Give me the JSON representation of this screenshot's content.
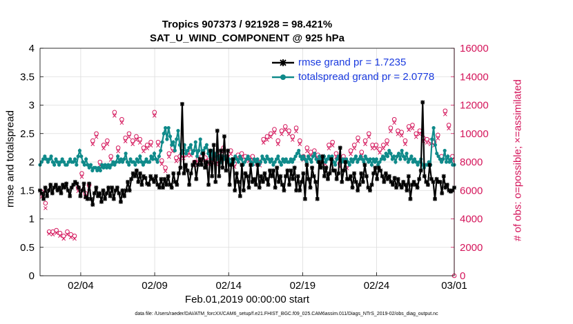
{
  "figure": {
    "title_line1": "Tropics 907373 / 921928 = 98.421%",
    "title_line2": "SAT_U_WIND_COMPONENT @ 925 hPa",
    "xlabel": "Feb.01,2019 00:00:00 start",
    "ylabel_left": "rmse and totalspread",
    "ylabel_right": "# of obs: o=possible; ×=assimilated",
    "footer": "data file: /Users/raeder/DAI/ATM_forcXX/CAM6_setup/f.e21.FHIST_BGC.f09_025.CAM6assim.011/Diags_NTrS_2019-02/obs_diag_output.nc"
  },
  "legend": {
    "rmse_label": "rmse grand pr = 1.7235",
    "spread_label": "totalspread grand pr = 2.0778"
  },
  "colors": {
    "rmse": "#000000",
    "spread": "#0f8a8a",
    "obs": "#d4145a",
    "axis": "#000000"
  },
  "chart_data": {
    "type": "line",
    "x_unit": "days since Feb.01,2019 00:00",
    "xlim": [
      0,
      28
    ],
    "xticks": [
      2.75,
      7.75,
      12.75,
      17.75,
      22.75,
      28
    ],
    "xtick_labels": [
      "02/04",
      "02/09",
      "02/14",
      "02/19",
      "02/24",
      "03/01"
    ],
    "ylim_left": [
      0,
      4
    ],
    "yticks_left": [
      0,
      0.5,
      1,
      1.5,
      2,
      2.5,
      3,
      3.5,
      4
    ],
    "ylim_right": [
      0,
      16000
    ],
    "yticks_right": [
      0,
      2000,
      4000,
      6000,
      8000,
      10000,
      12000,
      14000,
      16000
    ],
    "series": [
      {
        "name": "rmse grand pr = 1.7235",
        "axis": "left",
        "values": [
          1.5,
          1.45,
          1.35,
          1.55,
          1.4,
          1.5,
          1.6,
          1.45,
          1.55,
          1.6,
          1.5,
          1.55,
          1.45,
          1.6,
          1.55,
          1.62,
          1.5,
          1.4,
          1.55,
          1.6,
          1.65,
          1.62,
          1.55,
          1.4,
          1.5,
          1.62,
          1.38,
          1.35,
          1.62,
          1.35,
          1.25,
          1.45,
          1.55,
          1.4,
          1.45,
          1.3,
          1.5,
          1.35,
          1.45,
          1.55,
          1.4,
          1.55,
          1.35,
          1.5,
          1.55,
          1.45,
          1.3,
          1.5,
          1.4,
          1.5,
          1.65,
          1.5,
          1.7,
          1.8,
          1.75,
          1.85,
          1.65,
          1.8,
          1.6,
          1.75,
          1.72,
          1.62,
          1.6,
          1.75,
          1.7,
          1.65,
          1.75,
          1.6,
          1.55,
          1.7,
          1.55,
          1.7,
          1.6,
          1.75,
          1.6,
          1.55,
          1.8,
          1.65,
          1.6,
          1.8,
          1.9,
          3.02,
          1.8,
          1.95,
          1.85,
          1.6,
          1.8,
          1.95,
          2.0,
          1.7,
          1.95,
          2.05,
          1.95,
          2.15,
          1.9,
          2.0,
          1.6,
          2.2,
          1.75,
          2.3,
          1.65,
          2.55,
          1.75,
          2.2,
          1.9,
          2.45,
          1.85,
          2.2,
          1.6,
          1.95,
          2.05,
          1.5,
          1.8,
          1.65,
          1.4,
          1.95,
          1.5,
          1.8,
          1.75,
          1.55,
          1.95,
          1.65,
          1.7,
          1.6,
          1.95,
          1.55,
          1.75,
          1.65,
          1.8,
          1.7,
          1.6,
          1.85,
          1.75,
          1.85,
          1.55,
          1.9,
          1.65,
          1.75,
          1.6,
          1.5,
          1.75,
          1.85,
          1.6,
          1.85,
          1.7,
          1.9,
          1.5,
          1.75,
          1.5,
          1.65,
          1.8,
          1.35,
          1.95,
          1.7,
          1.55,
          1.9,
          1.75,
          1.65,
          1.35,
          2.0,
          1.9,
          2.1,
          1.75,
          1.9,
          1.7,
          1.8,
          2.05,
          1.85,
          1.85,
          1.7,
          1.8,
          2.25,
          1.65,
          1.85,
          2.0,
          1.7,
          1.7,
          1.75,
          1.55,
          1.8,
          1.65,
          1.5,
          1.6,
          1.8,
          1.65,
          1.95,
          1.75,
          1.55,
          1.5,
          1.6,
          1.8,
          1.9,
          1.7,
          1.9,
          1.85,
          1.75,
          1.65,
          1.8,
          1.7,
          1.75,
          1.65,
          1.6,
          1.72,
          1.55,
          1.7,
          1.6,
          1.55,
          1.65,
          1.6,
          1.5,
          1.75,
          1.35,
          1.6,
          1.65,
          1.6,
          1.55,
          1.7,
          1.85,
          3.05,
          1.75,
          1.65,
          1.6,
          1.95,
          1.7,
          1.65,
          1.35,
          1.7,
          1.65,
          1.65,
          1.45,
          1.75,
          1.55,
          1.6,
          1.5,
          1.48,
          1.5,
          1.55
        ]
      },
      {
        "name": "totalspread grand pr = 2.0778",
        "axis": "left",
        "values": [
          1.95,
          2.0,
          2.05,
          2.1,
          2.05,
          2.0,
          2.05,
          2.1,
          2.0,
          1.95,
          2.05,
          2.0,
          1.95,
          2.0,
          2.05,
          2.0,
          1.95,
          1.95,
          2.0,
          2.05,
          2.0,
          2.0,
          2.05,
          1.95,
          2.1,
          2.2,
          2.1,
          2.0,
          1.95,
          2.05,
          1.95,
          1.9,
          1.95,
          1.85,
          1.9,
          1.9,
          1.85,
          1.9,
          1.85,
          1.95,
          1.9,
          1.95,
          1.9,
          1.95,
          1.9,
          1.95,
          2.0,
          1.95,
          2.0,
          2.1,
          2.0,
          2.05,
          2.0,
          2.05,
          2.15,
          2.0,
          1.95,
          2.05,
          2.0,
          2.0,
          1.95,
          2.05,
          2.0,
          2.1,
          2.0,
          1.95,
          2.0,
          2.05,
          2.0,
          2.0,
          2.1,
          2.05,
          2.15,
          2.05,
          2.0,
          2.1,
          2.2,
          2.35,
          2.5,
          2.6,
          2.4,
          2.6,
          2.45,
          2.3,
          2.35,
          2.2,
          2.4,
          2.55,
          2.3,
          2.15,
          2.2,
          2.3,
          2.15,
          2.2,
          2.25,
          2.3,
          2.15,
          2.2,
          2.35,
          2.1,
          2.2,
          2.4,
          2.15,
          2.2,
          2.25,
          2.3,
          2.15,
          2.1,
          2.2,
          2.05,
          2.15,
          2.1,
          2.05,
          2.1,
          2.0,
          2.1,
          2.05,
          2.1,
          2.0,
          2.05,
          1.95,
          2.05,
          2.0,
          2.1,
          2.05,
          2.0,
          2.1,
          2.05,
          1.95,
          2.0,
          2.05,
          2.1,
          2.05,
          2.0,
          1.95,
          2.05,
          2.0,
          2.05,
          1.95,
          2.0,
          2.1,
          2.05,
          2.0,
          2.1,
          2.05,
          2.0,
          2.05,
          1.95,
          2.0,
          2.05,
          2.1,
          2.0,
          1.95,
          2.05,
          2.0,
          2.05,
          2.0,
          2.0,
          2.05,
          2.0,
          2.05,
          2.1,
          2.15,
          2.2,
          2.1,
          2.05,
          2.1,
          2.05,
          2.0,
          2.1,
          2.05,
          2.0,
          2.1,
          2.15,
          2.05,
          2.0,
          2.1,
          2.05,
          2.0,
          2.1,
          2.0,
          2.05,
          2.1,
          2.05,
          2.1,
          2.0,
          1.95,
          2.05,
          2.1,
          2.05,
          2.0,
          2.05,
          2.0,
          2.05,
          2.0,
          1.95,
          2.05,
          2.0,
          2.05,
          2.1,
          2.0,
          2.05,
          2.1,
          2.05,
          2.0,
          2.1,
          2.05,
          2.0,
          2.05,
          1.95,
          2.05,
          2.0,
          2.05,
          1.95,
          2.0,
          2.05,
          2.1,
          2.05,
          2.15,
          2.1,
          2.2,
          2.15,
          2.05,
          2.1,
          2.0,
          2.1,
          2.15,
          2.05,
          2.2,
          2.1,
          2.05,
          2.15,
          2.0,
          2.05,
          2.1,
          2.0,
          2.05,
          2.0,
          1.95,
          2.0,
          2.05,
          1.95,
          1.9,
          1.95,
          1.95,
          2.0,
          1.95,
          2.4,
          2.6,
          2.3,
          2.15,
          2.1,
          2.05,
          2.0,
          2.05,
          2.2,
          2.0,
          2.1,
          2.0,
          2.05,
          1.95,
          1.95
        ]
      },
      {
        "name": "# of obs possible (o)",
        "axis": "right",
        "marker": "o",
        "values": [
          5900,
          5100,
          3100,
          3100,
          3200,
          3000,
          2800,
          3100,
          2900,
          2800,
          6200,
          7200,
          5800,
          6400,
          9500,
          10000,
          8000,
          9200,
          9500,
          8400,
          11500,
          9000,
          11000,
          9700,
          10000,
          9500,
          9800,
          9600,
          9000,
          9200,
          9400,
          11500,
          9400,
          8100,
          7600,
          8600,
          9000,
          8300,
          8400,
          8500,
          8700,
          8700,
          8000,
          8200,
          8400,
          8300,
          8100,
          8200,
          8100,
          8700,
          9000,
          8400,
          8800,
          7900,
          8500,
          8600,
          8400,
          8300,
          8400,
          8100,
          8000,
          9600,
          9800,
          10000,
          10300,
          9500,
          10200,
          10500,
          10200,
          9800,
          10400,
          9500,
          8400,
          9000,
          8700,
          8800,
          8500,
          8300,
          8100,
          9200,
          9400,
          8600,
          7900,
          8400,
          7800,
          8800,
          9200,
          9700,
          8700,
          9500,
          10000,
          9200,
          9200,
          8900,
          9200,
          9500,
          10400,
          11000,
          10200,
          10100,
          9500,
          10500,
          10600,
          10000,
          10200,
          9700,
          9600,
          9500,
          9400,
          9900,
          8400,
          11600,
          10600,
          8400
        ]
      },
      {
        "name": "# of obs assimilated (×)",
        "axis": "right",
        "marker": "x",
        "values": [
          5700,
          4900,
          3100,
          3050,
          3150,
          2950,
          2750,
          3050,
          2850,
          2750,
          6100,
          7100,
          5700,
          6300,
          9400,
          9900,
          7900,
          9100,
          9400,
          8300,
          11400,
          8900,
          10900,
          9600,
          9900,
          9400,
          9700,
          9500,
          8900,
          9100,
          9300,
          11400,
          9300,
          8000,
          7500,
          8500,
          8900,
          8200,
          8300,
          8400,
          8600,
          8600,
          7900,
          8100,
          8300,
          8200,
          8000,
          8100,
          8000,
          8600,
          8900,
          8300,
          8700,
          7800,
          8400,
          8500,
          8300,
          8200,
          8300,
          8000,
          7900,
          9500,
          9700,
          9900,
          10200,
          9400,
          10100,
          10400,
          10100,
          9700,
          10300,
          9400,
          8300,
          8900,
          8600,
          8700,
          8400,
          8200,
          8000,
          9100,
          9300,
          8500,
          7800,
          8300,
          7700,
          8700,
          9100,
          9600,
          8600,
          9400,
          9900,
          9100,
          9100,
          8800,
          9100,
          9400,
          10300,
          10900,
          10100,
          10000,
          9400,
          10400,
          10500,
          9900,
          10100,
          9600,
          9500,
          9400,
          9300,
          9800,
          8300,
          11500,
          10500,
          8300
        ]
      }
    ]
  }
}
